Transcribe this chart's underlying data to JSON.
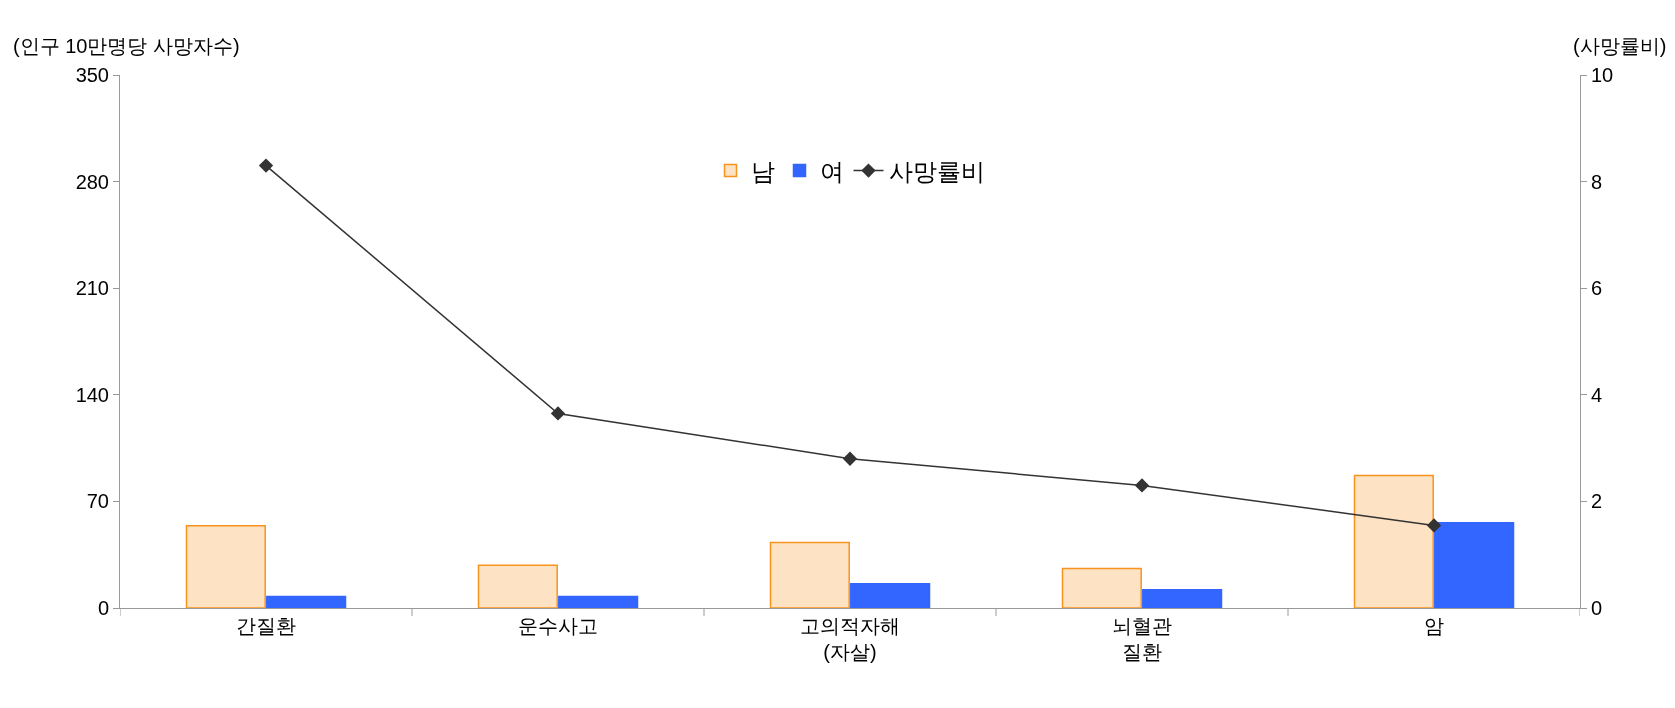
{
  "chart_data": {
    "type": "bar",
    "categories": [
      "간질환",
      "운수사고",
      "고의적자해\n(자살)",
      "뇌혈관\n질환",
      "암"
    ],
    "ylabel": "(인구 10만명당 사망자수)",
    "y2label": "(사망률비)",
    "ylim": [
      0,
      350
    ],
    "yticks": [
      0,
      70,
      140,
      210,
      280,
      350
    ],
    "y2lim": [
      0,
      10
    ],
    "y2ticks": [
      0,
      2,
      4,
      6,
      8,
      10
    ],
    "series": [
      {
        "name": "남",
        "color": "#fde2c4",
        "values": [
          54,
          28,
          43,
          26,
          87
        ]
      },
      {
        "name": "여",
        "color": "#3366ff",
        "values": [
          7.5,
          7.5,
          16,
          12,
          56
        ]
      },
      {
        "name": "사망률비",
        "type": "line",
        "axis": "y2",
        "color": "#333333",
        "marker": "diamond",
        "values": [
          8.3,
          3.65,
          2.8,
          2.3,
          1.55
        ]
      }
    ],
    "legend": "top"
  }
}
